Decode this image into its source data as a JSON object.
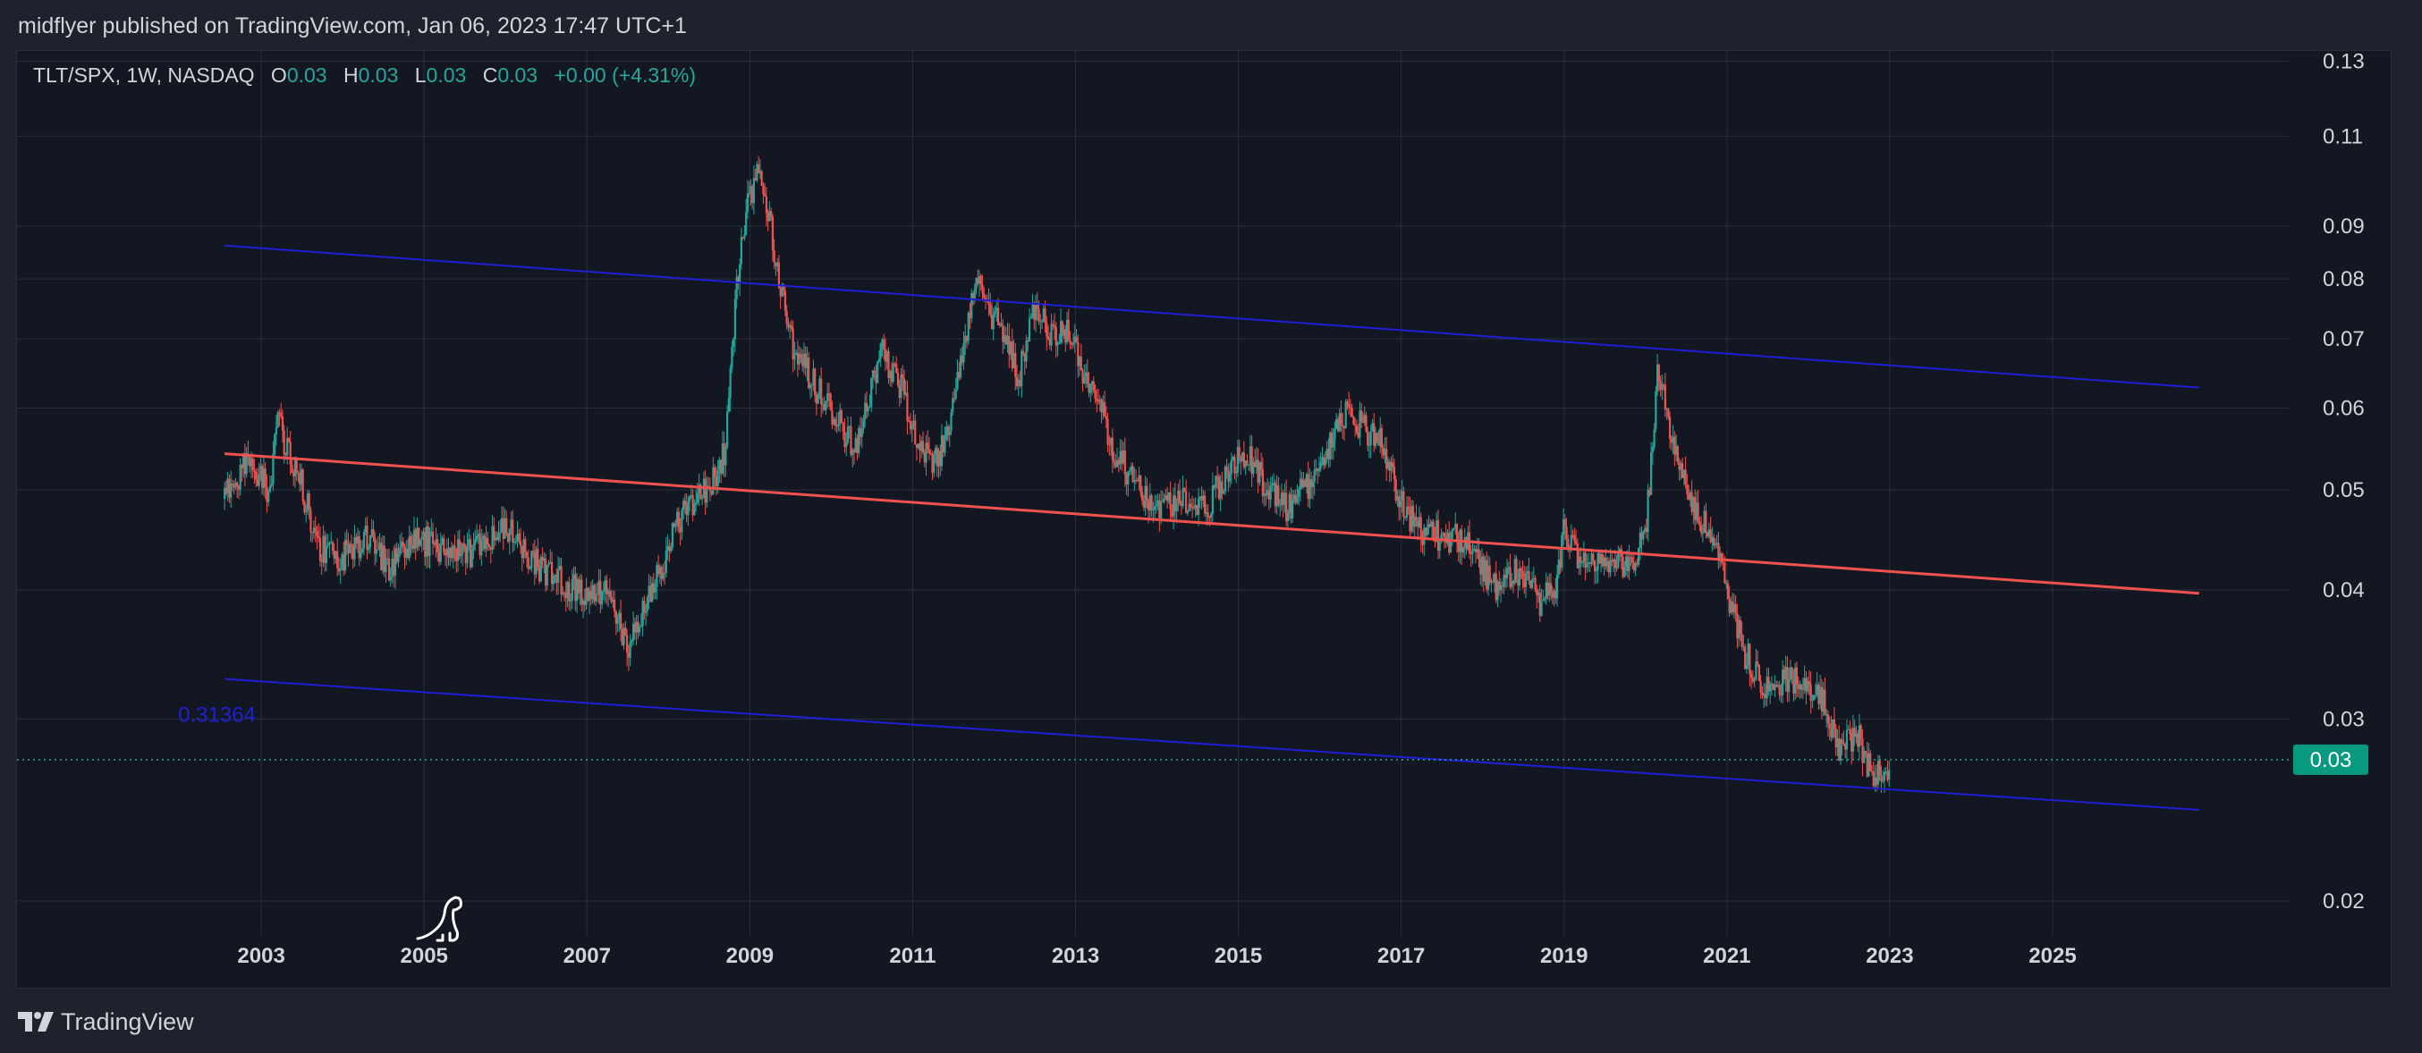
{
  "header": {
    "published": "midflyer published on TradingView.com, Jan 06, 2023 17:47 UTC+1"
  },
  "legend": {
    "symbol": "TLT/SPX, 1W, NASDAQ",
    "open_label": "O",
    "open": "0.03",
    "high_label": "H",
    "high": "0.03",
    "low_label": "L",
    "low": "0.03",
    "close_label": "C",
    "close": "0.03",
    "change": "+0.00 (+4.31%)"
  },
  "footer": {
    "brand": "TradingView"
  },
  "colors": {
    "up": "#26a69a",
    "down": "#ef5350",
    "channel": "#1f1fd6",
    "midline": "#f0524f",
    "grid": "#2a2e39",
    "background": "#131722"
  },
  "chart_data": {
    "type": "candlestick",
    "symbol": "TLT/SPX",
    "interval": "1W",
    "exchange": "NASDAQ",
    "y_scale": "log",
    "ylim": [
      0.0185,
      0.133
    ],
    "xlim": [
      2000.0,
      2027.9
    ],
    "y_ticks": [
      0.02,
      0.03,
      0.04,
      0.05,
      0.06,
      0.07,
      0.08,
      0.09,
      0.11,
      0.13
    ],
    "y_tick_labels": [
      "0.02",
      "0.03",
      "0.04",
      "0.05",
      "0.06",
      "0.07",
      "0.08",
      "0.09",
      "0.11",
      "0.13"
    ],
    "x_ticks": [
      2003,
      2005,
      2007,
      2009,
      2011,
      2013,
      2015,
      2017,
      2019,
      2021,
      2023,
      2025
    ],
    "x_tick_labels": [
      "2003",
      "2005",
      "2007",
      "2009",
      "2011",
      "2013",
      "2015",
      "2017",
      "2019",
      "2021",
      "2023",
      "2025"
    ],
    "last_price": 0.0274,
    "last_price_label": "0.03",
    "price_path": [
      [
        2002.55,
        0.049
      ],
      [
        2002.8,
        0.053
      ],
      [
        2003.1,
        0.05
      ],
      [
        2003.2,
        0.058
      ],
      [
        2003.45,
        0.052
      ],
      [
        2003.7,
        0.044
      ],
      [
        2004.0,
        0.043
      ],
      [
        2004.3,
        0.045
      ],
      [
        2004.6,
        0.042
      ],
      [
        2004.9,
        0.045
      ],
      [
        2005.2,
        0.044
      ],
      [
        2005.5,
        0.043
      ],
      [
        2005.8,
        0.045
      ],
      [
        2006.1,
        0.046
      ],
      [
        2006.3,
        0.043
      ],
      [
        2006.6,
        0.041
      ],
      [
        2006.9,
        0.04
      ],
      [
        2007.2,
        0.04
      ],
      [
        2007.4,
        0.037
      ],
      [
        2007.5,
        0.035
      ],
      [
        2007.7,
        0.038
      ],
      [
        2007.9,
        0.042
      ],
      [
        2008.2,
        0.048
      ],
      [
        2008.5,
        0.05
      ],
      [
        2008.7,
        0.055
      ],
      [
        2008.85,
        0.08
      ],
      [
        2009.0,
        0.097
      ],
      [
        2009.15,
        0.102
      ],
      [
        2009.3,
        0.085
      ],
      [
        2009.5,
        0.07
      ],
      [
        2009.8,
        0.063
      ],
      [
        2010.1,
        0.058
      ],
      [
        2010.3,
        0.055
      ],
      [
        2010.6,
        0.068
      ],
      [
        2010.8,
        0.065
      ],
      [
        2011.1,
        0.054
      ],
      [
        2011.3,
        0.053
      ],
      [
        2011.5,
        0.06
      ],
      [
        2011.65,
        0.07
      ],
      [
        2011.8,
        0.082
      ],
      [
        2011.9,
        0.075
      ],
      [
        2012.1,
        0.072
      ],
      [
        2012.3,
        0.064
      ],
      [
        2012.5,
        0.076
      ],
      [
        2012.7,
        0.07
      ],
      [
        2012.9,
        0.072
      ],
      [
        2013.1,
        0.064
      ],
      [
        2013.3,
        0.06
      ],
      [
        2013.5,
        0.054
      ],
      [
        2013.8,
        0.05
      ],
      [
        2014.0,
        0.048
      ],
      [
        2014.3,
        0.049
      ],
      [
        2014.6,
        0.048
      ],
      [
        2014.9,
        0.053
      ],
      [
        2015.1,
        0.054
      ],
      [
        2015.3,
        0.051
      ],
      [
        2015.6,
        0.048
      ],
      [
        2015.9,
        0.051
      ],
      [
        2016.1,
        0.055
      ],
      [
        2016.3,
        0.059
      ],
      [
        2016.5,
        0.058
      ],
      [
        2016.8,
        0.055
      ],
      [
        2016.95,
        0.049
      ],
      [
        2017.2,
        0.046
      ],
      [
        2017.5,
        0.045
      ],
      [
        2017.8,
        0.045
      ],
      [
        2018.0,
        0.042
      ],
      [
        2018.2,
        0.04
      ],
      [
        2018.4,
        0.042
      ],
      [
        2018.7,
        0.039
      ],
      [
        2018.9,
        0.04
      ],
      [
        2019.0,
        0.046
      ],
      [
        2019.2,
        0.042
      ],
      [
        2019.5,
        0.043
      ],
      [
        2019.8,
        0.042
      ],
      [
        2020.0,
        0.045
      ],
      [
        2020.15,
        0.066
      ],
      [
        2020.3,
        0.058
      ],
      [
        2020.5,
        0.05
      ],
      [
        2020.8,
        0.045
      ],
      [
        2021.0,
        0.04
      ],
      [
        2021.2,
        0.035
      ],
      [
        2021.5,
        0.032
      ],
      [
        2021.8,
        0.033
      ],
      [
        2022.0,
        0.032
      ],
      [
        2022.2,
        0.031
      ],
      [
        2022.4,
        0.028
      ],
      [
        2022.6,
        0.029
      ],
      [
        2022.75,
        0.027
      ],
      [
        2022.9,
        0.0262
      ],
      [
        2023.0,
        0.0274
      ]
    ],
    "trendlines": [
      {
        "role": "upper-channel",
        "from": [
          2002.55,
          0.0862
        ],
        "to": [
          2026.8,
          0.0628
        ]
      },
      {
        "role": "midline",
        "from": [
          2002.55,
          0.0542
        ],
        "to": [
          2026.8,
          0.0397
        ]
      },
      {
        "role": "lower-channel",
        "from": [
          2002.55,
          0.0328
        ],
        "to": [
          2026.8,
          0.0245
        ],
        "label": "0.31364"
      }
    ]
  }
}
